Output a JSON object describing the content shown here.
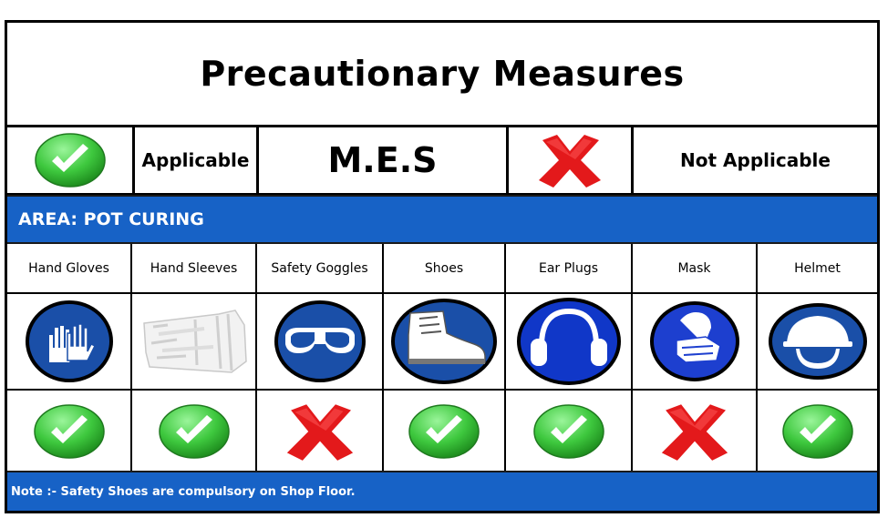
{
  "title": "Precautionary Measures",
  "legend": {
    "applicable_label": "Applicable",
    "center_label": "M.E.S",
    "not_applicable_label": "Not Applicable"
  },
  "area": "AREA: POT CURING",
  "ppe": [
    {
      "name": "Hand Gloves",
      "icon": "hand-gloves-icon",
      "applicable": true
    },
    {
      "name": "Hand Sleeves",
      "icon": "hand-sleeves-icon",
      "applicable": true
    },
    {
      "name": "Safety Goggles",
      "icon": "safety-goggles-icon",
      "applicable": false
    },
    {
      "name": "Shoes",
      "icon": "safety-shoes-icon",
      "applicable": true
    },
    {
      "name": "Ear Plugs",
      "icon": "ear-plugs-icon",
      "applicable": true
    },
    {
      "name": "Mask",
      "icon": "mask-icon",
      "applicable": false
    },
    {
      "name": "Helmet",
      "icon": "helmet-icon",
      "applicable": true
    }
  ],
  "note": "Note :- Safety Shoes are compulsory on Shop Floor.",
  "colors": {
    "band_blue": "#1762c6",
    "icon_blue": "#1a4fa8",
    "check_green": "#3ec83e",
    "cross_red": "#e3191b"
  }
}
